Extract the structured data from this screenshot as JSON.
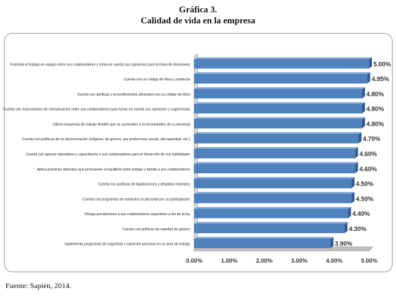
{
  "figure": {
    "number": "Gráfica 3.",
    "title": "Calidad de vida en la empresa",
    "source": "Fuente: Sapién, 2014."
  },
  "chart_data": {
    "type": "bar",
    "orientation": "horizontal",
    "categories": [
      "Fomenta el trabajo en equipo entre sus colaboradores y toma en cuenta sus opiniones para la toma de decisiones",
      "Cuenta con un código de ética y conducta",
      "Cuenta con políticas y procedimientos alineados con su código de ética",
      "Cuenta con instrumentos de comunicación entre sus colaboradores para tomar en cuenta sus opiniones y sugerencias",
      "Utiliza esquemas de trabajo flexible que se acomoden a la necesidades de su personal",
      "Cuenta con políticas de no discriminación (religiosa, de género, por preferencia sexual, discapacidad, etc.)",
      "Cuenta con apoyos educativos y capacitación a sus colaboradores para el desarrollo de sus habilidades",
      "Aplica prácticas laborales que promueven el equilibrio entre trabajo y familia a sus colaboradores",
      "Cuenta con políticas de liquidaciones y despidos honestos",
      "Cuenta con programas de estímulos al personal por su participación",
      "Otorga prestaciones a sus colaboradores superiores a las de la ley",
      "Cuenta con políticas de equidad de género",
      "Implementa programas de seguridad y salud del personal en su área de trabajo"
    ],
    "values": [
      5.0,
      4.95,
      4.8,
      4.8,
      4.8,
      4.7,
      4.6,
      4.6,
      4.5,
      4.5,
      4.4,
      4.3,
      3.9
    ],
    "value_labels": [
      "5.00%",
      "4.95%",
      "4.80%",
      "4.80%",
      "4.80%",
      "4.70%",
      "4.60%",
      "4.60%",
      "4.50%",
      "4.50%",
      "4.40%",
      "4.30%",
      "3.90%"
    ],
    "xticks": [
      "0.00%",
      "1.00%",
      "2.00%",
      "3.00%",
      "4.00%",
      "5.00%"
    ],
    "xlim": [
      0,
      5
    ],
    "bar_color": "#4f81bd",
    "grid": false,
    "legend": "none"
  }
}
